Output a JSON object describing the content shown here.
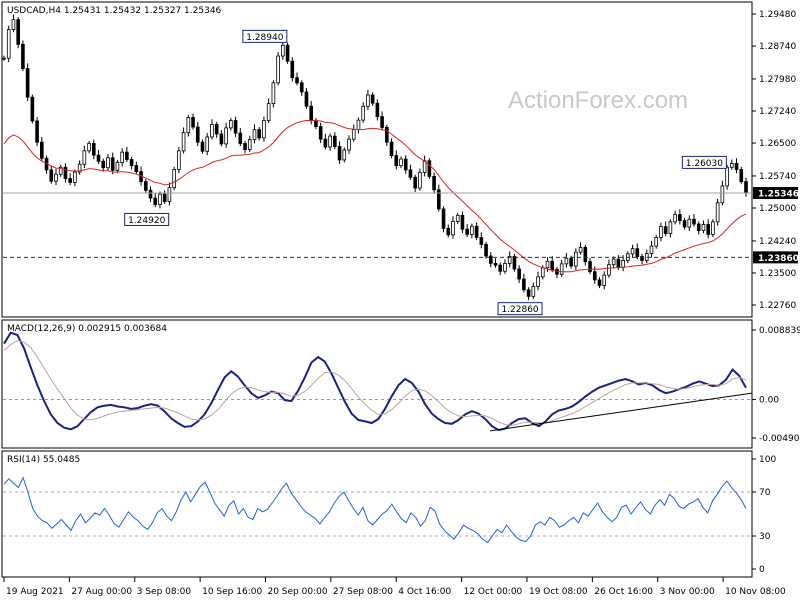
{
  "chart_data": [
    {
      "type": "candlestick",
      "panel": "price",
      "title": "USDCAD,H4",
      "ohlc": [
        "1.25431",
        "1.25432",
        "1.25327",
        "1.25346"
      ],
      "ylim": [
        1.2276,
        1.2948
      ],
      "yticks": [
        "1.29480",
        "1.28740",
        "1.27980",
        "1.27240",
        "1.26500",
        "1.25740",
        "1.25000",
        "1.24240",
        "1.23500",
        "1.22760"
      ],
      "current_price": "1.25346",
      "hline": "1.23860",
      "ma_color": "#dd2222",
      "candle_color": "#000000",
      "annotations": [
        {
          "label": "1.28940",
          "value": 1.2894,
          "x": "2021-09-20 04:00"
        },
        {
          "label": "1.24920",
          "value": 1.2492,
          "x": "2021-09-01 08:00"
        },
        {
          "label": "1.26030",
          "value": 1.2603,
          "x": "2021-11-11 04:00"
        },
        {
          "label": "1.22860",
          "value": 1.2286,
          "x": "2021-10-20 16:00"
        }
      ],
      "close": [
        1.2846,
        1.2912,
        1.2935,
        1.2878,
        1.2822,
        1.2756,
        1.2701,
        1.2652,
        1.2615,
        1.2588,
        1.2562,
        1.2578,
        1.2594,
        1.2568,
        1.2559,
        1.2583,
        1.2601,
        1.2632,
        1.2649,
        1.2622,
        1.2608,
        1.2593,
        1.2616,
        1.2587,
        1.2605,
        1.2629,
        1.2612,
        1.2598,
        1.2584,
        1.2561,
        1.2541,
        1.2523,
        1.2508,
        1.2532,
        1.2515,
        1.2547,
        1.2589,
        1.2632,
        1.2674,
        1.2709,
        1.2687,
        1.2652,
        1.2631,
        1.2664,
        1.2693,
        1.2671,
        1.2648,
        1.2685,
        1.2702,
        1.2673,
        1.2649,
        1.2635,
        1.2658,
        1.2681,
        1.2662,
        1.2702,
        1.2741,
        1.2789,
        1.2851,
        1.2876,
        1.2839,
        1.2801,
        1.2789,
        1.2768,
        1.2735,
        1.2702,
        1.2688,
        1.2659,
        1.2641,
        1.2666,
        1.2642,
        1.2611,
        1.2634,
        1.2659,
        1.2681,
        1.2703,
        1.2735,
        1.2761,
        1.2742,
        1.2711,
        1.2686,
        1.2652,
        1.2621,
        1.2598,
        1.2613,
        1.2588,
        1.2571,
        1.2546,
        1.2582,
        1.2609,
        1.2573,
        1.2542,
        1.2498,
        1.2453,
        1.2438,
        1.2469,
        1.2483,
        1.2451,
        1.2439,
        1.2458,
        1.2432,
        1.2416,
        1.2389,
        1.2372,
        1.2368,
        1.2354,
        1.2372,
        1.2388,
        1.2359,
        1.2336,
        1.2311,
        1.2296,
        1.2319,
        1.2341,
        1.2362,
        1.2377,
        1.2358,
        1.2347,
        1.2371,
        1.2384,
        1.2366,
        1.2398,
        1.2409,
        1.2376,
        1.2353,
        1.2334,
        1.2321,
        1.2345,
        1.2369,
        1.2382,
        1.2363,
        1.2379,
        1.2394,
        1.2406,
        1.2388,
        1.2379,
        1.2395,
        1.2412,
        1.2432,
        1.2457,
        1.2441,
        1.2468,
        1.2485,
        1.2471,
        1.2456,
        1.2474,
        1.2463,
        1.2448,
        1.2462,
        1.2439,
        1.2468,
        1.2512,
        1.2551,
        1.2594,
        1.2603,
        1.2589,
        1.2561,
        1.2535
      ],
      "ma": [
        1.2648,
        1.2662,
        1.2669,
        1.2664,
        1.2655,
        1.2641,
        1.2627,
        1.2616,
        1.2608,
        1.2603,
        1.2597,
        1.2592,
        1.2592,
        1.2588,
        1.2586,
        1.2585,
        1.2586,
        1.2588,
        1.2591,
        1.259,
        1.2588,
        1.2586,
        1.2586,
        1.2583,
        1.2583,
        1.2584,
        1.2583,
        1.2581,
        1.2578,
        1.2574,
        1.2569,
        1.2564,
        1.2559,
        1.2557,
        1.2553,
        1.2555,
        1.256,
        1.2566,
        1.2574,
        1.2582,
        1.2588,
        1.2592,
        1.2594,
        1.2599,
        1.2605,
        1.2609,
        1.2611,
        1.2615,
        1.262,
        1.2622,
        1.2622,
        1.2623,
        1.2624,
        1.2627,
        1.2628,
        1.2634,
        1.2641,
        1.2651,
        1.2664,
        1.2677,
        1.2686,
        1.2692,
        1.2697,
        1.27,
        1.2702,
        1.2702,
        1.2702,
        1.2701,
        1.2698,
        1.2697,
        1.2695,
        1.269,
        1.2686,
        1.2683,
        1.2682,
        1.2681,
        1.2681,
        1.2683,
        1.2684,
        1.2683,
        1.2681,
        1.2678,
        1.2671,
        1.2662,
        1.2654,
        1.2645,
        1.2634,
        1.2623,
        1.2615,
        1.2608,
        1.2599,
        1.2589,
        1.2575,
        1.256,
        1.2547,
        1.2536,
        1.2526,
        1.2516,
        1.2505,
        1.2495,
        1.2485,
        1.2474,
        1.2462,
        1.245,
        1.2439,
        1.2428,
        1.2419,
        1.2411,
        1.2403,
        1.2394,
        1.2385,
        1.2377,
        1.2371,
        1.2366,
        1.2362,
        1.2359,
        1.2356,
        1.2354,
        1.2353,
        1.2353,
        1.2353,
        1.2355,
        1.2357,
        1.2358,
        1.2359,
        1.2359,
        1.2359,
        1.236,
        1.2361,
        1.2362,
        1.2362,
        1.2363,
        1.2364,
        1.2366,
        1.2367,
        1.2368,
        1.237,
        1.2372,
        1.2376,
        1.2381,
        1.2385,
        1.239,
        1.2396,
        1.24,
        1.2404,
        1.2408,
        1.2412,
        1.2415,
        1.2418,
        1.242,
        1.2424,
        1.2431,
        1.244,
        1.2452,
        1.2463,
        1.2473,
        1.2481,
        1.2486
      ]
    },
    {
      "type": "line",
      "panel": "macd",
      "title": "MACD(12,26,9) 0.002915 0.003684",
      "ylim": [
        -0.004907,
        0.008839
      ],
      "yticks": [
        "0.008839",
        "0.00",
        "-0.004907"
      ],
      "trendline": true,
      "series": [
        {
          "role": "histogram",
          "color": "#1a237e",
          "values": [
            0.0071,
            0.0085,
            0.0082,
            0.0065,
            0.0041,
            0.0018,
            -0.0002,
            -0.0019,
            -0.003,
            -0.0036,
            -0.0038,
            -0.0034,
            -0.0025,
            -0.0016,
            -0.001,
            -0.0008,
            -0.0007,
            -0.0009,
            -0.001,
            -0.0012,
            -0.0011,
            -0.0008,
            -0.0006,
            -0.0008,
            -0.0015,
            -0.0024,
            -0.003,
            -0.0035,
            -0.0034,
            -0.0028,
            -0.0019,
            -0.0005,
            0.0012,
            0.0028,
            0.0036,
            0.0029,
            0.0018,
            0.0008,
            0.0002,
            0.0005,
            0.001,
            0.0008,
            -0.0001,
            -0.0002,
            0.0011,
            0.0028,
            0.0047,
            0.0054,
            0.0048,
            0.0033,
            0.0015,
            -0.0003,
            -0.0018,
            -0.0026,
            -0.0028,
            -0.003,
            -0.0025,
            -0.0012,
            0.0004,
            0.0018,
            0.0026,
            0.0021,
            0.001,
            -0.0006,
            -0.0018,
            -0.0025,
            -0.003,
            -0.0031,
            -0.0026,
            -0.0019,
            -0.0015,
            -0.0018,
            -0.0025,
            -0.0034,
            -0.0039,
            -0.0037,
            -0.003,
            -0.0025,
            -0.0024,
            -0.003,
            -0.0034,
            -0.0028,
            -0.0019,
            -0.0014,
            -0.0012,
            -0.0009,
            -0.0003,
            0.0004,
            0.001,
            0.0015,
            0.0018,
            0.0021,
            0.0024,
            0.0026,
            0.0023,
            0.0019,
            0.0021,
            0.0018,
            0.0012,
            0.0008,
            0.001,
            0.0013,
            0.0016,
            0.002,
            0.0023,
            0.002,
            0.0017,
            0.0018,
            0.0025,
            0.0038,
            0.003,
            0.0015
          ]
        },
        {
          "role": "signal",
          "color": "#c0a0a0",
          "values": [
            0.0062,
            0.007,
            0.0075,
            0.0073,
            0.0066,
            0.0054,
            0.004,
            0.0026,
            0.0013,
            0.0001,
            -0.0011,
            -0.002,
            -0.0025,
            -0.0026,
            -0.0024,
            -0.0021,
            -0.0018,
            -0.0016,
            -0.0015,
            -0.0014,
            -0.0013,
            -0.0012,
            -0.0011,
            -0.001,
            -0.0011,
            -0.0014,
            -0.0017,
            -0.0021,
            -0.0025,
            -0.0026,
            -0.0025,
            -0.002,
            -0.0013,
            -0.0003,
            0.0007,
            0.0013,
            0.0016,
            0.0015,
            0.0012,
            0.001,
            0.0009,
            0.0009,
            0.0007,
            0.0004,
            0.0005,
            0.001,
            0.0018,
            0.0027,
            0.0034,
            0.0035,
            0.0031,
            0.0024,
            0.0014,
            0.0003,
            -0.0006,
            -0.0014,
            -0.0019,
            -0.0018,
            -0.0013,
            -0.0005,
            0.0004,
            0.0011,
            0.0013,
            0.0011,
            0.0005,
            -0.0003,
            -0.0011,
            -0.0017,
            -0.0021,
            -0.0022,
            -0.0021,
            -0.002,
            -0.0021,
            -0.0024,
            -0.0029,
            -0.0032,
            -0.0033,
            -0.0031,
            -0.0029,
            -0.0029,
            -0.003,
            -0.003,
            -0.0027,
            -0.0024,
            -0.0021,
            -0.0018,
            -0.0014,
            -0.0009,
            -0.0004,
            0.0001,
            0.0006,
            0.0011,
            0.0015,
            0.0019,
            0.0021,
            0.0021,
            0.0021,
            0.002,
            0.0019,
            0.0016,
            0.0014,
            0.0013,
            0.0014,
            0.0016,
            0.0018,
            0.0019,
            0.0019,
            0.0018,
            0.002,
            0.0026,
            0.0028,
            0.0025
          ]
        }
      ]
    },
    {
      "type": "line",
      "panel": "rsi",
      "title": "RSI(14) 55.0485",
      "ylim": [
        0,
        100
      ],
      "yticks": [
        "100",
        "70",
        "30",
        "0"
      ],
      "levels": [
        70,
        30
      ],
      "series": [
        {
          "color": "#1e64dc",
          "values": [
            77,
            82,
            78,
            74,
            83,
            70,
            55,
            48,
            44,
            42,
            37,
            41,
            45,
            40,
            35,
            44,
            50,
            42,
            46,
            51,
            49,
            55,
            49,
            41,
            38,
            45,
            52,
            47,
            44,
            39,
            36,
            42,
            51,
            55,
            48,
            44,
            52,
            63,
            70,
            61,
            68,
            75,
            79,
            70,
            60,
            54,
            48,
            58,
            62,
            50,
            55,
            47,
            45,
            55,
            52,
            54,
            60,
            66,
            73,
            78,
            69,
            63,
            57,
            52,
            49,
            46,
            41,
            47,
            52,
            60,
            66,
            70,
            62,
            55,
            49,
            56,
            44,
            40,
            45,
            50,
            53,
            59,
            52,
            46,
            42,
            51,
            47,
            39,
            44,
            56,
            53,
            41,
            35,
            31,
            27,
            33,
            40,
            37,
            35,
            32,
            27,
            24,
            30,
            36,
            33,
            40,
            34,
            29,
            26,
            25,
            30,
            40,
            43,
            40,
            47,
            44,
            38,
            40,
            44,
            47,
            42,
            51,
            48,
            54,
            60,
            52,
            47,
            43,
            47,
            56,
            58,
            50,
            56,
            61,
            54,
            50,
            58,
            63,
            58,
            68,
            64,
            57,
            55,
            59,
            61,
            64,
            56,
            51,
            62,
            68,
            75,
            80,
            74,
            69,
            63,
            55
          ]
        }
      ]
    }
  ],
  "xaxis": {
    "labels": [
      "19 Aug 2021",
      "27 Aug 00:00",
      "3 Sep 08:00",
      "10 Sep 16:00",
      "20 Sep 00:00",
      "27 Sep 08:00",
      "4 Oct 16:00",
      "12 Oct 00:00",
      "19 Oct 08:00",
      "26 Oct 16:00",
      "3 Nov 00:00",
      "10 Nov 08:00"
    ]
  },
  "watermark": "ActionForex.com",
  "colors": {
    "macd_main": "#1a237e",
    "ma": "#dd2222",
    "rsi": "#1e64dc",
    "current_price_box": "#000000",
    "dashed_level": "#333333"
  }
}
